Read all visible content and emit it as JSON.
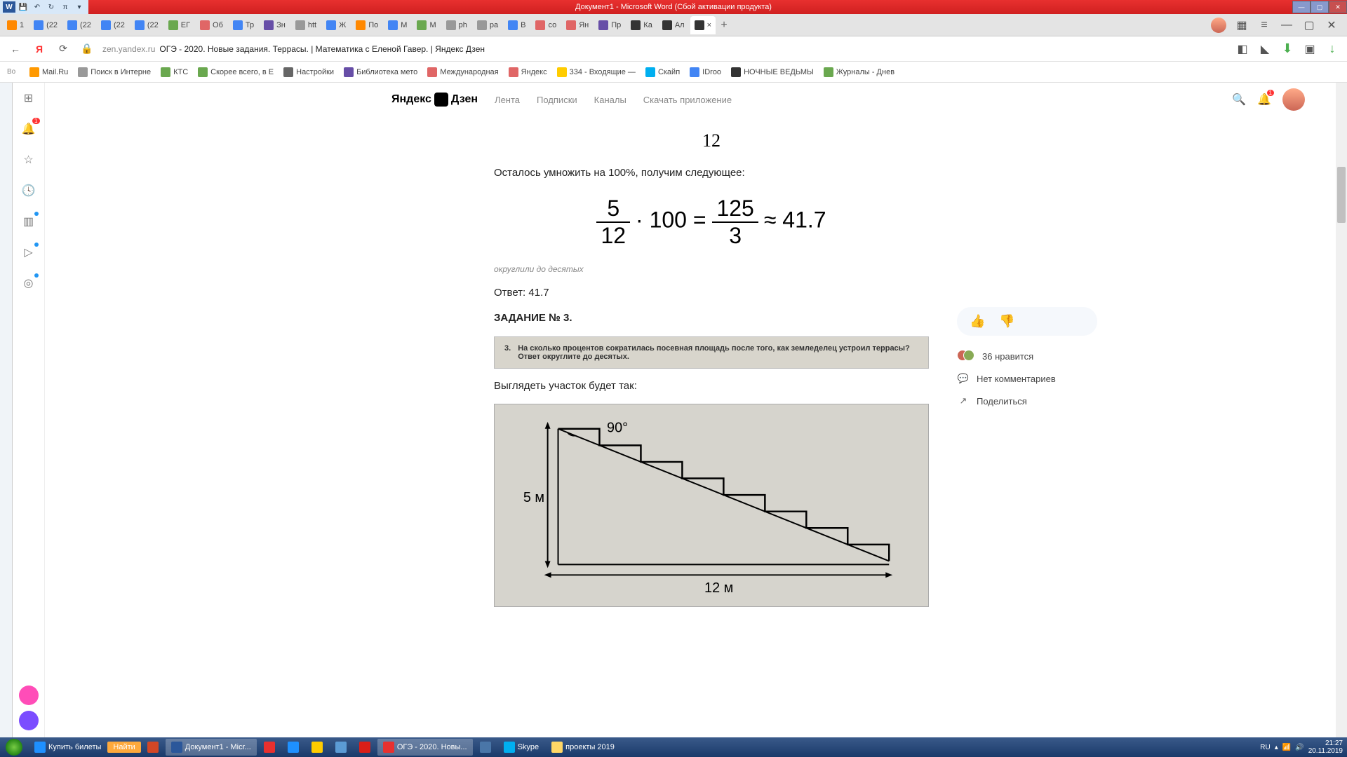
{
  "word": {
    "title": "Документ1 - Microsoft Word (Сбой активации продукта)",
    "qat": [
      "W",
      "▯",
      "⎌",
      "↻",
      "π",
      "▾"
    ]
  },
  "tabs": {
    "items": [
      {
        "label": "1",
        "color": "#ff8800"
      },
      {
        "label": "(22",
        "color": "#4285f4"
      },
      {
        "label": "(22",
        "color": "#4285f4"
      },
      {
        "label": "(22",
        "color": "#4285f4"
      },
      {
        "label": "(22",
        "color": "#4285f4"
      },
      {
        "label": "ЕГ",
        "color": "#6aa84f"
      },
      {
        "label": "Об",
        "color": "#e06666"
      },
      {
        "label": "Тр",
        "color": "#4285f4"
      },
      {
        "label": "Зн",
        "color": "#674ea7"
      },
      {
        "label": "htt",
        "color": "#999"
      },
      {
        "label": "Ж",
        "color": "#4285f4"
      },
      {
        "label": "По",
        "color": "#ff8800"
      },
      {
        "label": "М",
        "color": "#4285f4"
      },
      {
        "label": "М",
        "color": "#6aa84f"
      },
      {
        "label": "ph",
        "color": "#999"
      },
      {
        "label": "ра",
        "color": "#999"
      },
      {
        "label": "В",
        "color": "#4285f4"
      },
      {
        "label": "со",
        "color": "#e06666"
      },
      {
        "label": "Ян",
        "color": "#e06666"
      },
      {
        "label": "Пр",
        "color": "#674ea7"
      },
      {
        "label": "Ка",
        "color": "#333"
      },
      {
        "label": "Ал",
        "color": "#333"
      },
      {
        "label": "×",
        "color": "#333",
        "active": true
      }
    ]
  },
  "addr": {
    "host": "zen.yandex.ru",
    "title": "ОГЭ - 2020. Новые задания. Террасы. | Математика с Еленой Гавер. | Яндекс Дзен"
  },
  "bookmarks": [
    {
      "label": "Mail.Ru",
      "color": "#ff9900"
    },
    {
      "label": "Поиск в Интерне",
      "color": "#999"
    },
    {
      "label": "КТС",
      "color": "#6aa84f"
    },
    {
      "label": "Скорее всего, в Е",
      "color": "#6aa84f"
    },
    {
      "label": "Настройки",
      "color": "#666"
    },
    {
      "label": "Библиотека мето",
      "color": "#674ea7"
    },
    {
      "label": "Международная",
      "color": "#e06666"
    },
    {
      "label": "Яндекс",
      "color": "#e06666"
    },
    {
      "label": "334 - Входящие —",
      "color": "#ffcc00"
    },
    {
      "label": "Скайп",
      "color": "#00aff0"
    },
    {
      "label": "IDroo",
      "color": "#4285f4"
    },
    {
      "label": "НОЧНЫЕ ВЕДЬМЫ",
      "color": "#333"
    },
    {
      "label": "Журналы - Днев",
      "color": "#6aa84f"
    }
  ],
  "zen": {
    "logo": "Яндекс    Дзен",
    "nav": [
      "Лента",
      "Подписки",
      "Каналы",
      "Скачать приложение"
    ],
    "bell_badge": "1"
  },
  "article": {
    "top_number": "12",
    "p1": "Осталось умножить на 100%, получим следующее:",
    "math": {
      "n1": "5",
      "d1": "12",
      "mid": " · 100 = ",
      "n2": "125",
      "d2": "3",
      "tail": " ≈ 41.7"
    },
    "caption": "округлили до десятых",
    "answer": "Ответ: 41.7",
    "task_title": "ЗАДАНИЕ № 3.",
    "task_num": "3.",
    "task_text": "На сколько процентов сократилась посевная площадь после того, как земледелец устроил террасы? Ответ округлите до десятых.",
    "p2": "Выглядеть участок будет так:",
    "diagram": {
      "angle": "90°",
      "height": "5 м",
      "width": "12 м",
      "steps": 8
    }
  },
  "side": {
    "likes_count": "36 нравится",
    "comments": "Нет комментариев",
    "share": "Поделиться"
  },
  "taskbar": {
    "items": [
      {
        "label": "Купить билеты",
        "color": "#1e90ff"
      },
      {
        "label": "Найти",
        "color": "#fda93c",
        "find": true
      },
      {
        "label": "",
        "color": "#d24726"
      },
      {
        "label": "Документ1 - Micr...",
        "color": "#2b579a",
        "active": true
      },
      {
        "label": "",
        "color": "#e8302f"
      },
      {
        "label": "",
        "color": "#1e90ff"
      },
      {
        "label": "",
        "color": "#ffcc00"
      },
      {
        "label": "",
        "color": "#5b9bd5"
      },
      {
        "label": "",
        "color": "#d91e18"
      },
      {
        "label": "ОГЭ - 2020. Новы...",
        "color": "#e8302f",
        "active": true
      },
      {
        "label": "",
        "color": "#4a76a8"
      },
      {
        "label": "Skype",
        "color": "#00aff0"
      },
      {
        "label": "проекты 2019",
        "color": "#ffd766"
      }
    ],
    "lang": "RU",
    "time": "21:27",
    "date": "20.11.2019"
  }
}
